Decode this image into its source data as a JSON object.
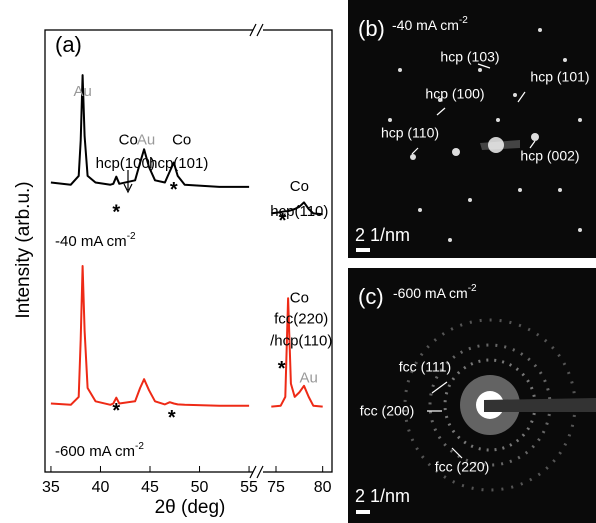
{
  "chart_data": {
    "type": "line",
    "panel_label": "(a)",
    "ylabel": "Intensity (arb.u.)",
    "xlabel": "2θ (deg)",
    "ylim": [
      0,
      100
    ],
    "segments": [
      {
        "xlim": [
          34.4,
          55.6
        ],
        "xticks": [
          35,
          40,
          45,
          50,
          55
        ],
        "x": [
          35,
          37,
          37.8,
          38.0,
          38.2,
          38.4,
          38.7,
          39.5,
          41,
          41.3,
          41.6,
          41.9,
          43.5,
          44,
          44.4,
          44.9,
          45.5,
          46.5,
          47,
          47.4,
          47.8,
          48.5,
          52,
          55
        ],
        "series": [
          {
            "color": "#000000",
            "values": [
              65.5,
              65,
              67,
              75,
              89.8,
              76,
              67,
              65.5,
              65,
              65.2,
              66.8,
              65.2,
              66,
              70,
              73,
              69,
              66,
              65.5,
              68,
              70,
              67,
              65,
              64.5,
              64.5
            ]
          },
          {
            "color": "#ee2a16",
            "values": [
              15.5,
              15.2,
              17,
              30,
              46.6,
              32,
              19,
              16,
              15.2,
              15.5,
              16.8,
              15.5,
              16,
              19,
              21,
              18.5,
              16,
              15.3,
              15.8,
              15.5,
              15.3,
              15.2,
              15,
              15
            ]
          }
        ]
      },
      {
        "xlim": [
          73.5,
          81
        ],
        "xticks": [
          75,
          80
        ],
        "x": [
          74.5,
          75.5,
          76,
          76.3,
          76.6,
          77,
          77.5,
          78,
          78.5,
          79,
          80
        ],
        "series": [
          {
            "color": "#000000",
            "values": [
              58.5,
              58.8,
              59,
              59,
              59.2,
              59.5,
              60,
              61,
              59.5,
              58.5,
              58.3
            ]
          },
          {
            "color": "#ee2a16",
            "values": [
              14.8,
              15,
              17,
              39.3,
              20,
              17,
              18,
              19.5,
              17,
              15,
              14.8
            ]
          }
        ]
      }
    ],
    "annotations": [
      {
        "text": "Au",
        "x": 38.2,
        "y": 86,
        "gray": true
      },
      {
        "text": "Co",
        "x": 42.8,
        "y": 75
      },
      {
        "text": "hcp(100)",
        "x": 42.5,
        "y": 69.7
      },
      {
        "text": "*",
        "x": 41.6,
        "y": 59.5
      },
      {
        "text": "Au",
        "x": 44.6,
        "y": 75,
        "gray": true
      },
      {
        "text": "Co",
        "x": 48.2,
        "y": 75
      },
      {
        "text": "hcp(101)",
        "x": 47.9,
        "y": 69.7
      },
      {
        "text": "*",
        "x": 47.4,
        "y": 64.5
      },
      {
        "text": "Co",
        "x": 77.5,
        "y": 64.5
      },
      {
        "text": "hcp(110)",
        "x": 77.5,
        "y": 58.8
      },
      {
        "text": "*",
        "x": 75.7,
        "y": 57.5
      },
      {
        "text": "Co",
        "x": 77.5,
        "y": 39.3
      },
      {
        "text": "fcc(220)",
        "x": 77.7,
        "y": 34.5
      },
      {
        "text": "/hcp(110)",
        "x": 77.7,
        "y": 29.5
      },
      {
        "text": "*",
        "x": 75.6,
        "y": 24
      },
      {
        "text": "Au",
        "x": 78.5,
        "y": 21.2,
        "gray": true
      },
      {
        "text": "*",
        "x": 41.6,
        "y": 14.5
      },
      {
        "text": "*",
        "x": 47.2,
        "y": 13
      }
    ],
    "condition_labels": [
      {
        "text": "-40 mA cm",
        "sup": "-2",
        "y": 52
      },
      {
        "text": "-600 mA cm",
        "sup": "-2",
        "y": 4.5
      }
    ]
  },
  "panels": [
    {
      "label": "(b)",
      "condition": "-40 mA cm",
      "sup": "-2",
      "scale": "2 1/nm",
      "spots": [
        "hcp (103)",
        "hcp (101)",
        "hcp (100)",
        "hcp (110)",
        "hcp (002)"
      ]
    },
    {
      "label": "(c)",
      "condition": "-600 mA cm",
      "sup": "-2",
      "scale": "2 1/nm",
      "spots": [
        "fcc (111)",
        "fcc (200)",
        "fcc (220)"
      ]
    }
  ]
}
